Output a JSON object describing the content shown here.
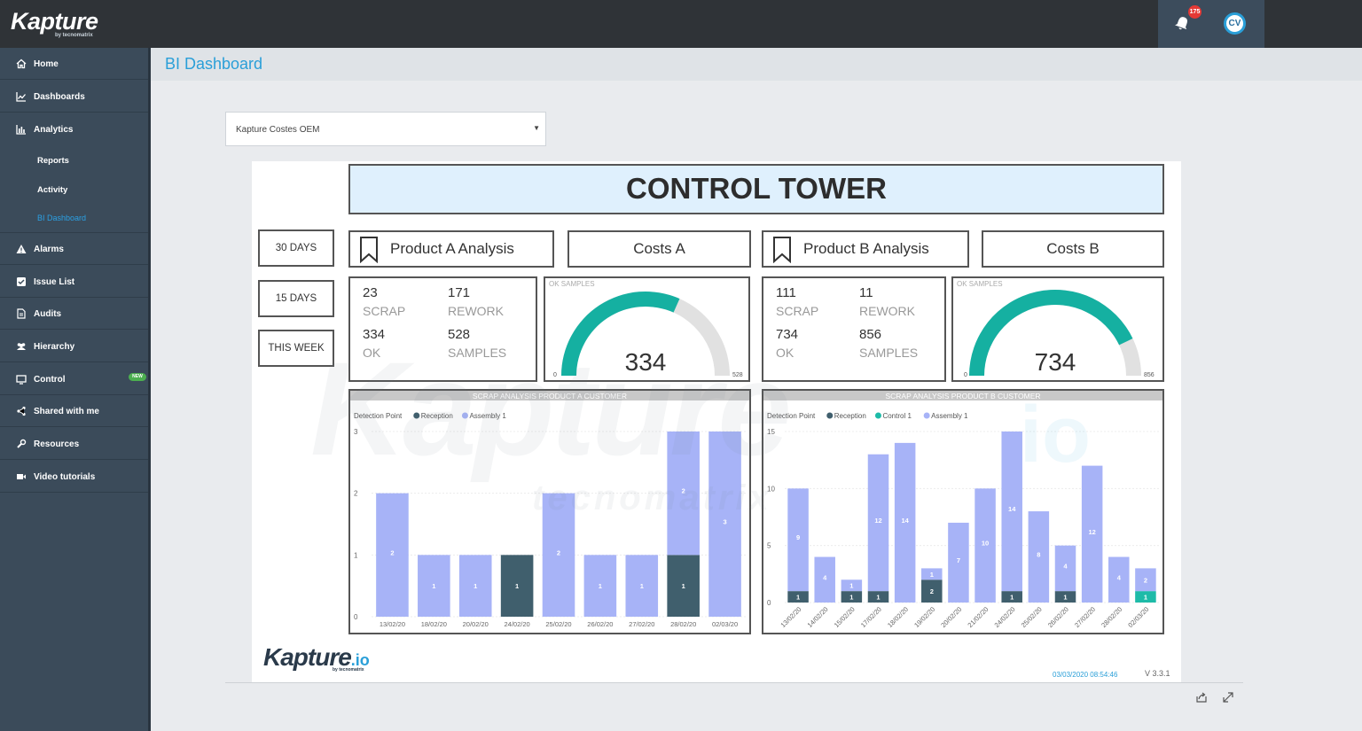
{
  "app": {
    "logo": "Kapture",
    "logo_by": "by tecnomatrix",
    "notification_count": "175",
    "user_initials": "CV"
  },
  "sidebar": {
    "items": [
      {
        "label": "Home",
        "icon": "home-icon"
      },
      {
        "label": "Dashboards",
        "icon": "line-chart-icon"
      },
      {
        "label": "Analytics",
        "icon": "bar-chart-icon"
      },
      {
        "label": "Alarms",
        "icon": "warning-icon"
      },
      {
        "label": "Issue List",
        "icon": "checkbox-icon"
      },
      {
        "label": "Audits",
        "icon": "document-icon"
      },
      {
        "label": "Hierarchy",
        "icon": "users-icon"
      },
      {
        "label": "Control",
        "icon": "monitor-icon",
        "badge": "NEW"
      },
      {
        "label": "Shared with me",
        "icon": "share-icon"
      },
      {
        "label": "Resources",
        "icon": "wrench-icon"
      },
      {
        "label": "Video tutorials",
        "icon": "video-icon"
      }
    ],
    "analytics_sub": [
      {
        "label": "Reports"
      },
      {
        "label": "Activity"
      },
      {
        "label": "BI Dashboard",
        "active": true
      }
    ]
  },
  "page": {
    "title": "BI Dashboard",
    "select_value": "Kapture Costes OEM"
  },
  "report": {
    "title": "CONTROL TOWER",
    "day_buttons": [
      "30 DAYS",
      "15 DAYS",
      "THIS WEEK"
    ],
    "product_a": {
      "header": "Product A Analysis",
      "costs": "Costs A",
      "scrap": "23",
      "scrap_label": "SCRAP",
      "rework": "171",
      "rework_label": "REWORK",
      "ok": "334",
      "ok_label": "OK",
      "samples": "528",
      "samples_label": "SAMPLES",
      "gauge": {
        "label": "OK SAMPLES",
        "value": 334,
        "value_text": "334",
        "min": "0",
        "max": 528,
        "max_text": "528"
      }
    },
    "product_b": {
      "header": "Product B Analysis",
      "costs": "Costs B",
      "scrap": "111",
      "scrap_label": "SCRAP",
      "rework": "11",
      "rework_label": "REWORK",
      "ok": "734",
      "ok_label": "OK",
      "samples": "856",
      "samples_label": "SAMPLES",
      "gauge": {
        "label": "OK SAMPLES",
        "value": 734,
        "value_text": "734",
        "min": "0",
        "max": 856,
        "max_text": "856"
      }
    },
    "footer_logo": "Kapture",
    "footer_logo_io": ".io",
    "footer_logo_by": "by tecnomatrix",
    "timestamp": "03/03/2020 08:54:46",
    "version": "V 3.3.1",
    "colors": {
      "reception": "#405f6d",
      "assembly": "#a7b3f7",
      "control": "#1ebba8",
      "gauge": "#15b0a1",
      "gauge_track": "#e1e1e1"
    }
  },
  "chart_data": [
    {
      "type": "bar",
      "title": "SCRAP ANALYSIS PRODUCT A CUSTOMER",
      "legend_title": "Detection Point",
      "categories": [
        "13/02/20",
        "18/02/20",
        "20/02/20",
        "24/02/20",
        "25/02/20",
        "26/02/20",
        "27/02/20",
        "28/02/20",
        "02/03/20"
      ],
      "series": [
        {
          "name": "Reception",
          "values": [
            0,
            0,
            0,
            1,
            0,
            0,
            0,
            1,
            0
          ]
        },
        {
          "name": "Assembly 1",
          "values": [
            2,
            1,
            1,
            0,
            2,
            1,
            1,
            2,
            3
          ]
        }
      ],
      "ylim": [
        0,
        3
      ],
      "yticks": [
        0,
        1,
        2,
        3
      ],
      "stacked": true,
      "legend": "top-left"
    },
    {
      "type": "bar",
      "title": "SCRAP ANALYSIS PRODUCT B CUSTOMER",
      "legend_title": "Detection Point",
      "categories": [
        "13/02/20",
        "14/02/20",
        "15/02/20",
        "17/02/20",
        "18/02/20",
        "19/02/20",
        "20/02/20",
        "21/02/20",
        "24/02/20",
        "25/02/20",
        "26/02/20",
        "27/02/20",
        "28/02/20",
        "02/03/20"
      ],
      "series": [
        {
          "name": "Reception",
          "values": [
            1,
            0,
            1,
            1,
            0,
            2,
            0,
            0,
            1,
            0,
            1,
            0,
            0,
            0
          ]
        },
        {
          "name": "Control 1",
          "values": [
            0,
            0,
            0,
            0,
            0,
            0,
            0,
            0,
            0,
            0,
            0,
            0,
            0,
            1
          ]
        },
        {
          "name": "Assembly 1",
          "values": [
            9,
            4,
            1,
            12,
            14,
            1,
            7,
            10,
            14,
            8,
            4,
            12,
            4,
            2
          ]
        }
      ],
      "ylim": [
        0,
        15
      ],
      "yticks": [
        0,
        5,
        10,
        15
      ],
      "stacked": true,
      "legend": "top-left"
    }
  ]
}
